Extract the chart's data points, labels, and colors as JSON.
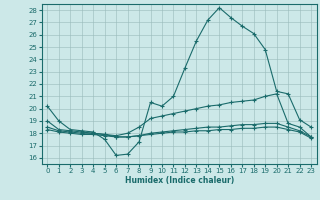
{
  "xlabel": "Humidex (Indice chaleur)",
  "xlim": [
    -0.5,
    23.5
  ],
  "ylim": [
    15.5,
    28.5
  ],
  "yticks": [
    16,
    17,
    18,
    19,
    20,
    21,
    22,
    23,
    24,
    25,
    26,
    27,
    28
  ],
  "xticks": [
    0,
    1,
    2,
    3,
    4,
    5,
    6,
    7,
    8,
    9,
    10,
    11,
    12,
    13,
    14,
    15,
    16,
    17,
    18,
    19,
    20,
    21,
    22,
    23
  ],
  "bg_color": "#cce8e8",
  "grid_color": "#99bbbb",
  "line_color": "#1a6b6b",
  "lines": [
    {
      "x": [
        0,
        1,
        2,
        3,
        4,
        5,
        6,
        7,
        8,
        9,
        10,
        11,
        12,
        13,
        14,
        15,
        16,
        17,
        18,
        19,
        20,
        21,
        22,
        23
      ],
      "y": [
        20.2,
        19.0,
        18.3,
        18.2,
        18.1,
        17.5,
        16.2,
        16.3,
        17.3,
        20.5,
        20.2,
        21.0,
        23.3,
        25.5,
        27.2,
        28.2,
        27.4,
        26.7,
        26.1,
        24.8,
        21.4,
        21.2,
        19.1,
        18.5
      ],
      "marker": "+"
    },
    {
      "x": [
        0,
        1,
        2,
        3,
        4,
        5,
        6,
        7,
        8,
        9,
        10,
        11,
        12,
        13,
        14,
        15,
        16,
        17,
        18,
        19,
        20,
        21,
        22,
        23
      ],
      "y": [
        19.0,
        18.3,
        18.2,
        18.1,
        18.0,
        17.9,
        17.8,
        18.0,
        18.5,
        19.2,
        19.4,
        19.6,
        19.8,
        20.0,
        20.2,
        20.3,
        20.5,
        20.6,
        20.7,
        21.0,
        21.2,
        18.8,
        18.5,
        17.7
      ],
      "marker": "+"
    },
    {
      "x": [
        0,
        1,
        2,
        3,
        4,
        5,
        6,
        7,
        8,
        9,
        10,
        11,
        12,
        13,
        14,
        15,
        16,
        17,
        18,
        19,
        20,
        21,
        22,
        23
      ],
      "y": [
        18.5,
        18.2,
        18.1,
        18.0,
        18.0,
        17.9,
        17.7,
        17.7,
        17.8,
        18.0,
        18.1,
        18.2,
        18.3,
        18.4,
        18.5,
        18.5,
        18.6,
        18.7,
        18.7,
        18.8,
        18.8,
        18.5,
        18.2,
        17.7
      ],
      "marker": "+"
    },
    {
      "x": [
        0,
        1,
        2,
        3,
        4,
        5,
        6,
        7,
        8,
        9,
        10,
        11,
        12,
        13,
        14,
        15,
        16,
        17,
        18,
        19,
        20,
        21,
        22,
        23
      ],
      "y": [
        18.3,
        18.1,
        18.0,
        17.9,
        17.9,
        17.8,
        17.7,
        17.7,
        17.8,
        17.9,
        18.0,
        18.1,
        18.1,
        18.2,
        18.2,
        18.3,
        18.3,
        18.4,
        18.4,
        18.5,
        18.5,
        18.3,
        18.1,
        17.6
      ],
      "marker": "+"
    }
  ]
}
